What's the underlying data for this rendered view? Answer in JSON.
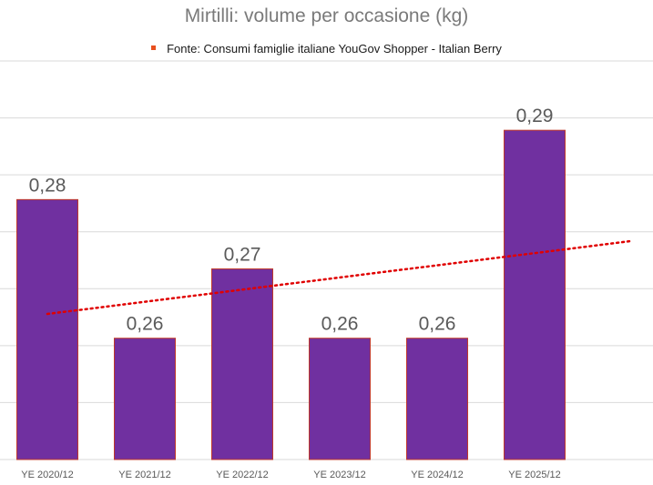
{
  "chart_data": {
    "type": "bar",
    "title": "Mirtilli: volume per occasione (kg)",
    "legend": "Fonte: Consumi famiglie italiane YouGov Shopper - Italian Berry",
    "categories": [
      "YE 2020/12",
      "YE 2021/12",
      "YE 2022/12",
      "YE 2023/12",
      "YE 2024/12",
      "YE 2025/12"
    ],
    "values": [
      0.28,
      0.26,
      0.27,
      0.26,
      0.26,
      0.29
    ],
    "value_labels": [
      "0,28",
      "0,26",
      "0,27",
      "0,26",
      "0,26",
      "0,29"
    ],
    "trendline": {
      "type": "linear",
      "style": "dotted",
      "start": 0.2635,
      "end": 0.274
    },
    "ylim": [
      0.2425,
      0.3
    ],
    "grid": true,
    "legend_position": "top",
    "colors": {
      "bar": "#7030a0",
      "bar_edge": "#c0392b",
      "trendline": "#e00000",
      "grid": "#d9d9d9"
    }
  }
}
